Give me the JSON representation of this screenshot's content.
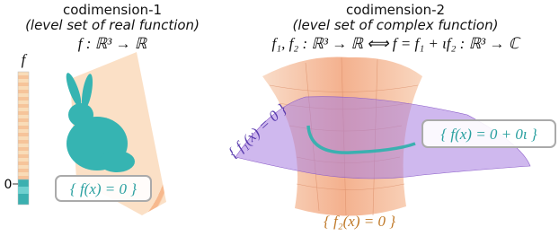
{
  "left": {
    "title": "codimension-1",
    "subtitle": "(level set of real function)",
    "formula": "f : ℝ³ → ℝ",
    "colorbar_label": "f",
    "colorbar_zero": "0",
    "level_set": "{ f(x) = 0 }"
  },
  "right": {
    "title": "codimension-2",
    "subtitle": "(level set of complex function)",
    "formula": "f₁, f₂ : ℝ³ → ℝ ⟺ f = f₁ + ιf₂ : ℝ³ → ℂ",
    "f1_label": "{ f₁(x) = 0 }",
    "f_label": "{ f(x) = 0 + 0ι }",
    "f2_label": "{ f₂(x) = 0 }"
  }
}
